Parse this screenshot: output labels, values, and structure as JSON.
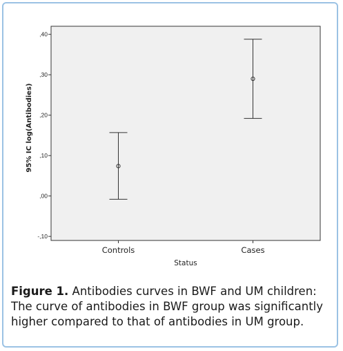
{
  "chart_data": {
    "type": "errorbar",
    "ylabel": "95% IC log(Antibodies)",
    "xlabel": "Status",
    "ylim": [
      -0.11,
      0.42
    ],
    "y_ticks": [
      -0.1,
      0.0,
      0.1,
      0.2,
      0.3,
      0.4
    ],
    "y_tick_labels": [
      "-,10",
      ",00",
      ",10",
      ",20",
      ",30",
      ",40"
    ],
    "grid": false,
    "categories": [
      "Controls",
      "Cases"
    ],
    "series": [
      {
        "mean": [
          0.074,
          0.29
        ],
        "lower": [
          -0.008,
          0.192
        ],
        "upper": [
          0.157,
          0.388
        ]
      }
    ]
  },
  "caption": {
    "label": "Figure 1.",
    "text": " Antibodies curves in BWF and UM children: The curve of antibodies in BWF group was significantly higher compared to that of antibodies in UM group."
  },
  "colors": {
    "plot_background": "#f0f0f0",
    "frame_border": "#9bc2e4",
    "marks": "#333333"
  }
}
